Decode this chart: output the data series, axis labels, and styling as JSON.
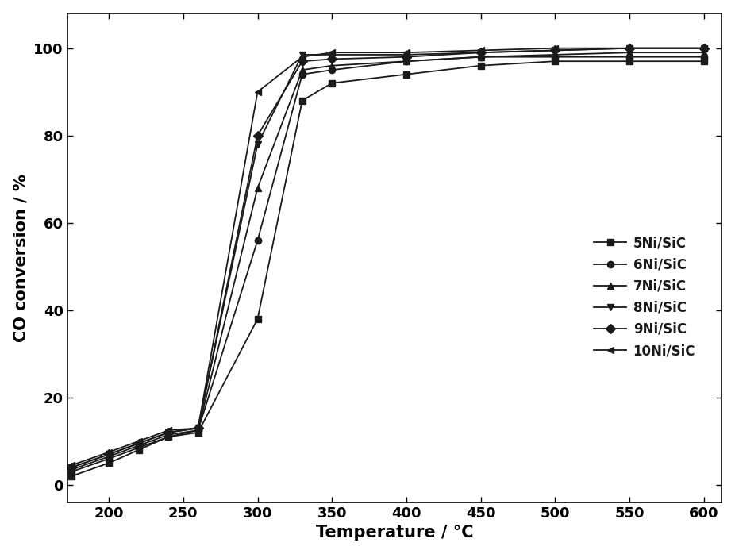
{
  "series": [
    {
      "label": "5Ni/SiC",
      "marker": "s",
      "temp": [
        175,
        200,
        220,
        240,
        260,
        300,
        330,
        350,
        400,
        450,
        500,
        550,
        600
      ],
      "conv": [
        2,
        5,
        8,
        11,
        12,
        38,
        88,
        92,
        94,
        96,
        97,
        97,
        97
      ]
    },
    {
      "label": "6Ni/SiC",
      "marker": "o",
      "temp": [
        175,
        200,
        220,
        240,
        260,
        300,
        330,
        350,
        400,
        450,
        500,
        550,
        600
      ],
      "conv": [
        3,
        6,
        8.5,
        11,
        12.5,
        56,
        94,
        95,
        97,
        98,
        98,
        98,
        98
      ]
    },
    {
      "label": "7Ni/SiC",
      "marker": "^",
      "temp": [
        175,
        200,
        220,
        240,
        260,
        300,
        330,
        350,
        400,
        450,
        500,
        550,
        600
      ],
      "conv": [
        3.5,
        6.5,
        9,
        11.5,
        12.5,
        68,
        95,
        96,
        97,
        98,
        98.5,
        99,
        99
      ]
    },
    {
      "label": "8Ni/SiC",
      "marker": "v",
      "temp": [
        175,
        200,
        220,
        240,
        260,
        300,
        330,
        350,
        400,
        450,
        500,
        550,
        600
      ],
      "conv": [
        4,
        7,
        9.5,
        12,
        13,
        78,
        98.5,
        98.5,
        98.5,
        99,
        99.5,
        100,
        100
      ]
    },
    {
      "label": "9Ni/SiC",
      "marker": "D",
      "temp": [
        175,
        200,
        220,
        240,
        260,
        300,
        330,
        350,
        400,
        450,
        500,
        550,
        600
      ],
      "conv": [
        4,
        7,
        9.5,
        12,
        13,
        80,
        97,
        97.5,
        98,
        99,
        99.5,
        100,
        100
      ]
    },
    {
      "label": "10Ni/SiC",
      "marker": "<",
      "temp": [
        175,
        200,
        220,
        240,
        260,
        300,
        330,
        350,
        400,
        450,
        500,
        550,
        600
      ],
      "conv": [
        4.5,
        7.5,
        10,
        12.5,
        13,
        90,
        98,
        99,
        99,
        99.5,
        100,
        100,
        100
      ]
    }
  ],
  "xlabel": "Temperature / °C",
  "ylabel": "CO conversion / %",
  "xlim": [
    172,
    612
  ],
  "ylim": [
    -4,
    108
  ],
  "xticks": [
    200,
    250,
    300,
    350,
    400,
    450,
    500,
    550,
    600
  ],
  "yticks": [
    0,
    20,
    40,
    60,
    80,
    100
  ],
  "color": "#1a1a1a",
  "linewidth": 1.3,
  "markersize": 6,
  "legend_fontsize": 12,
  "axis_fontsize": 15,
  "tick_fontsize": 13
}
